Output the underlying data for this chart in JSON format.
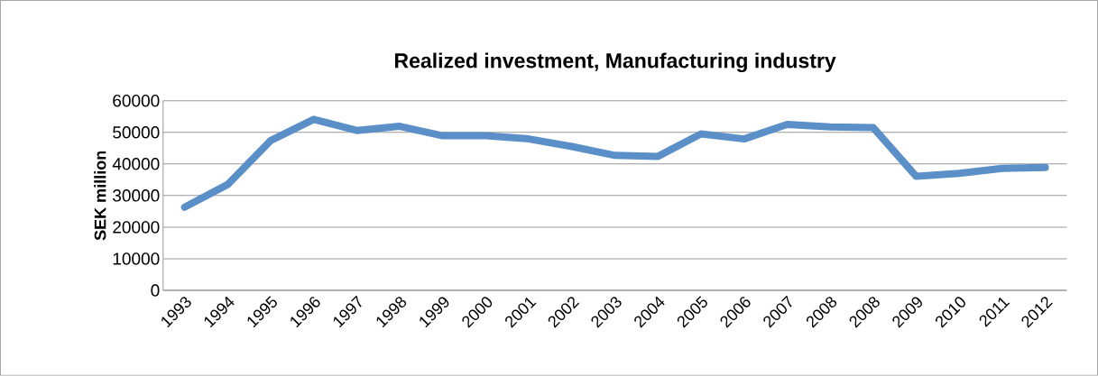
{
  "chart_data": {
    "type": "line",
    "title": "Realized investment, Manufacturing industry",
    "ylabel": "SEK million",
    "categories": [
      "1993",
      "1994",
      "1995",
      "1996",
      "1997",
      "1998",
      "1999",
      "2000",
      "2001",
      "2002",
      "2003",
      "2004",
      "2005",
      "2006",
      "2007",
      "2008",
      "2008",
      "2009",
      "2010",
      "2011",
      "2012"
    ],
    "series": [
      {
        "color": "#5b8fc8",
        "values": [
          26300,
          33500,
          47400,
          54100,
          50600,
          51900,
          48900,
          48900,
          47900,
          45500,
          42700,
          42400,
          49500,
          47900,
          52500,
          51700,
          51500,
          36100,
          37000,
          38600,
          38900
        ]
      }
    ],
    "ylim": [
      0,
      60000
    ],
    "yticks": [
      0,
      10000,
      20000,
      30000,
      40000,
      50000,
      60000
    ],
    "grid": "y",
    "marker": "none",
    "line_style": "solid"
  }
}
